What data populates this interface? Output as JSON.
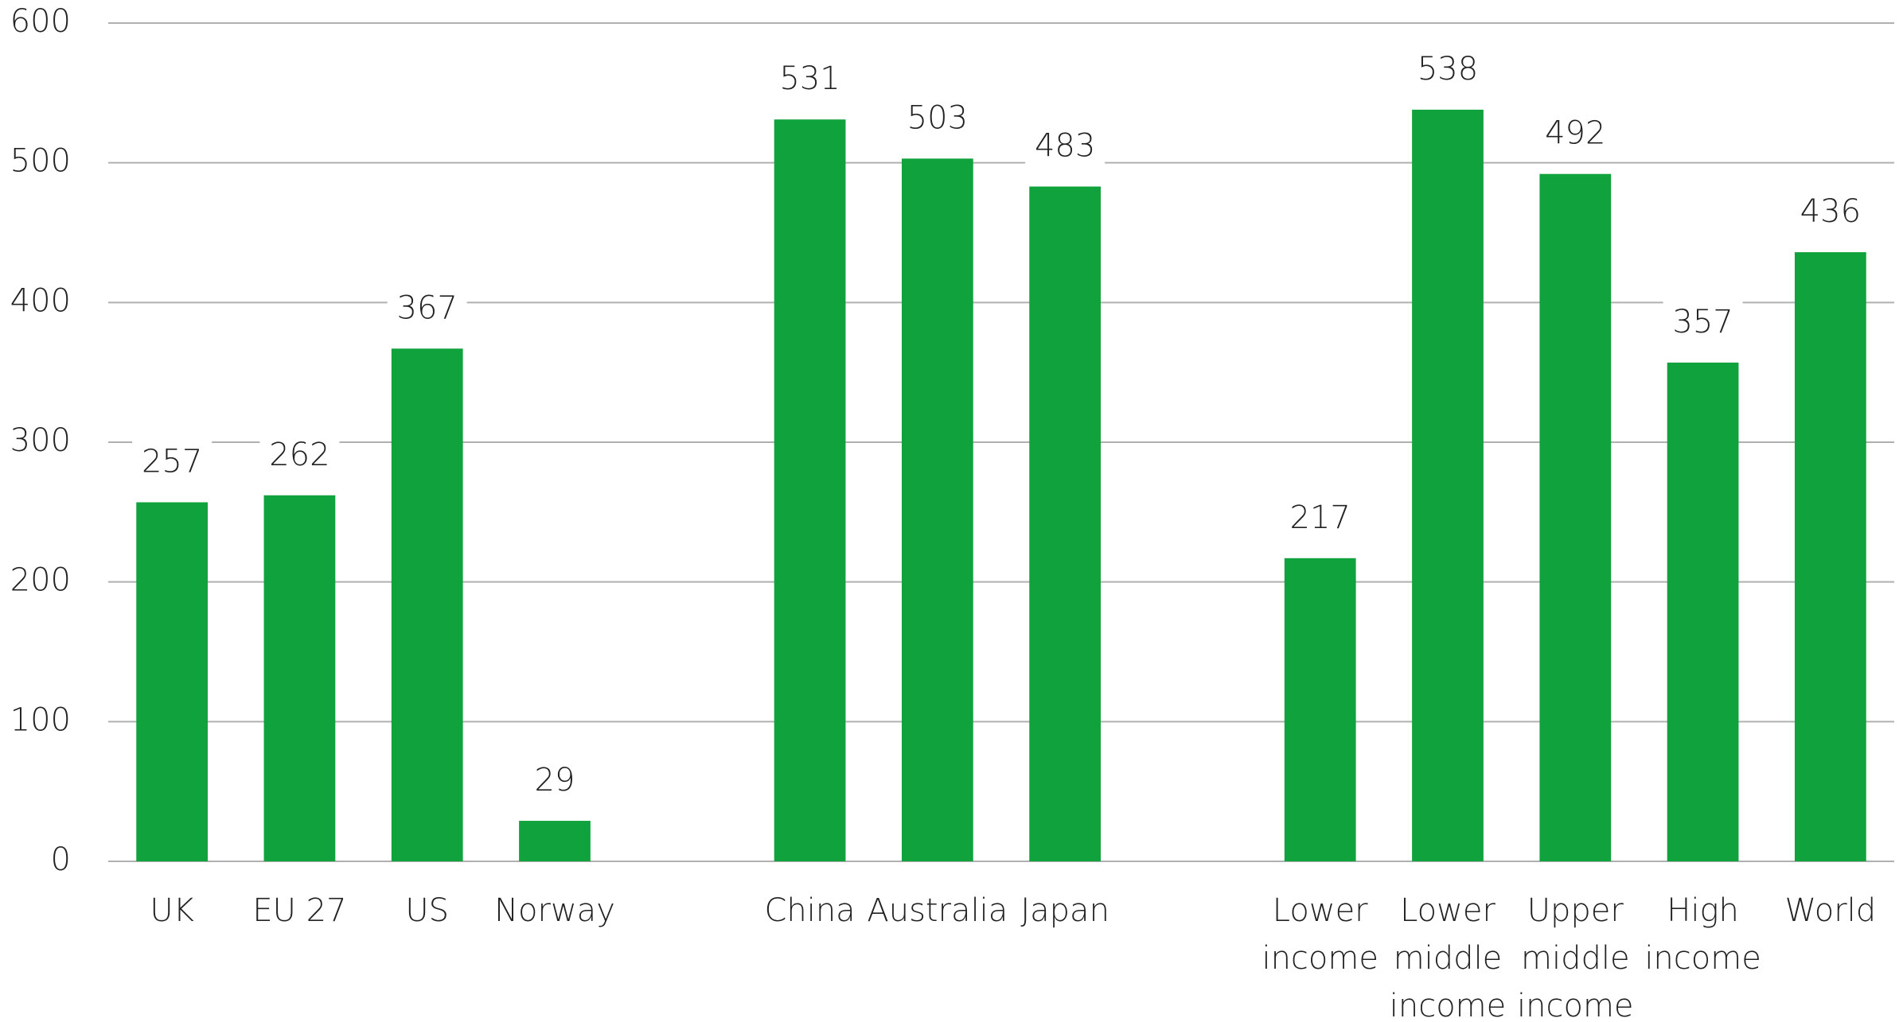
{
  "chart_data": {
    "type": "bar",
    "categories": [
      "UK",
      "EU 27",
      "US",
      "Norway",
      null,
      "China",
      "Australia",
      "Japan",
      null,
      "Lower income",
      "Lower middle income",
      "Upper middle income",
      "High income",
      "World"
    ],
    "values": [
      257,
      262,
      367,
      29,
      null,
      531,
      503,
      483,
      null,
      217,
      538,
      492,
      357,
      436
    ],
    "color": "#10a23c",
    "ylim": [
      0,
      600
    ],
    "yticks": [
      0,
      100,
      200,
      300,
      400,
      500,
      600
    ],
    "grid": true
  }
}
